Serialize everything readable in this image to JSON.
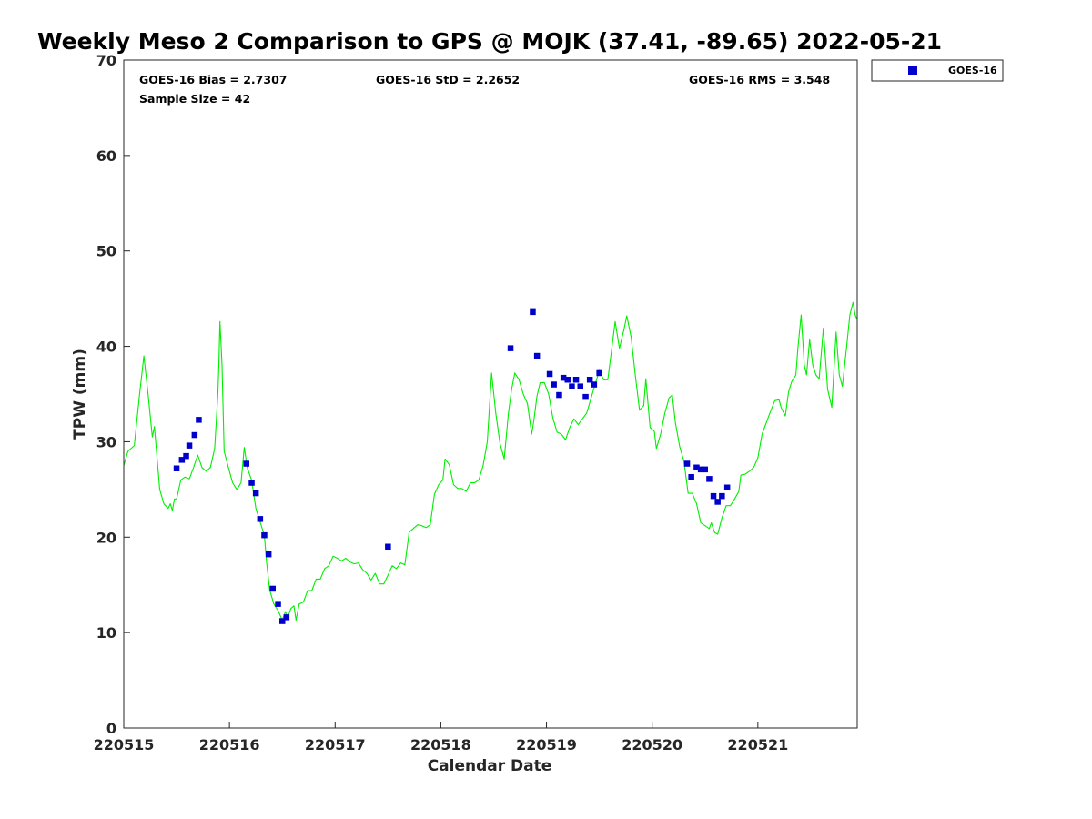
{
  "chart_data": {
    "type": "scatter",
    "title": "Weekly Meso 2 Comparison to GPS @ MOJK (37.41, -89.65) 2022-05-21",
    "xlabel": "Calendar Date",
    "ylabel": "TPW (mm)",
    "xlim": [
      0,
      6.94
    ],
    "ylim": [
      0,
      70
    ],
    "x_axis": "days since 220515 00Z",
    "x_ticks": [
      {
        "value": 0,
        "label": "220515"
      },
      {
        "value": 1,
        "label": "220516"
      },
      {
        "value": 2,
        "label": "220517"
      },
      {
        "value": 3,
        "label": "220518"
      },
      {
        "value": 4,
        "label": "220519"
      },
      {
        "value": 5,
        "label": "220520"
      },
      {
        "value": 6,
        "label": "220521"
      }
    ],
    "y_ticks": [
      0,
      10,
      20,
      30,
      40,
      50,
      60,
      70
    ],
    "grid": false,
    "legend_position": "top-right outside",
    "stats": {
      "bias": "GOES-16 Bias = 2.7307",
      "std": "GOES-16 StD = 2.2652",
      "rms": "GOES-16 RMS = 3.548",
      "sample": "Sample Size = 42"
    },
    "series": [
      {
        "name": "GOES-16",
        "kind": "scatter",
        "color": "#0000cc",
        "points": [
          [
            0.5,
            27.2
          ],
          [
            0.55,
            28.1
          ],
          [
            0.59,
            28.5
          ],
          [
            0.62,
            29.6
          ],
          [
            0.67,
            30.7
          ],
          [
            0.71,
            32.3
          ],
          [
            1.16,
            27.7
          ],
          [
            1.21,
            25.7
          ],
          [
            1.25,
            24.6
          ],
          [
            1.29,
            21.9
          ],
          [
            1.33,
            20.2
          ],
          [
            1.37,
            18.2
          ],
          [
            1.41,
            14.6
          ],
          [
            1.46,
            13.0
          ],
          [
            1.5,
            11.2
          ],
          [
            1.54,
            11.6
          ],
          [
            2.5,
            19.0
          ],
          [
            3.66,
            39.8
          ],
          [
            3.87,
            43.6
          ],
          [
            3.91,
            39.0
          ],
          [
            4.03,
            37.1
          ],
          [
            4.07,
            36.0
          ],
          [
            4.12,
            34.9
          ],
          [
            4.16,
            36.7
          ],
          [
            4.2,
            36.5
          ],
          [
            4.24,
            35.8
          ],
          [
            4.28,
            36.5
          ],
          [
            4.32,
            35.8
          ],
          [
            4.37,
            34.7
          ],
          [
            4.41,
            36.5
          ],
          [
            4.45,
            36.0
          ],
          [
            4.5,
            37.2
          ],
          [
            5.33,
            27.7
          ],
          [
            5.37,
            26.3
          ],
          [
            5.42,
            27.3
          ],
          [
            5.46,
            27.1
          ],
          [
            5.5,
            27.1
          ],
          [
            5.54,
            26.1
          ],
          [
            5.58,
            24.3
          ],
          [
            5.62,
            23.7
          ],
          [
            5.66,
            24.3
          ],
          [
            5.71,
            25.2
          ]
        ]
      },
      {
        "name": "GPS",
        "kind": "line",
        "color": "#00ee00",
        "points": [
          [
            0,
            27.5
          ],
          [
            0.04,
            29
          ],
          [
            0.1,
            29.6
          ],
          [
            0.15,
            35
          ],
          [
            0.19,
            39
          ],
          [
            0.23,
            35
          ],
          [
            0.27,
            30.5
          ],
          [
            0.29,
            31.6
          ],
          [
            0.34,
            25
          ],
          [
            0.38,
            23.5
          ],
          [
            0.42,
            23
          ],
          [
            0.44,
            23.5
          ],
          [
            0.46,
            22.8
          ],
          [
            0.48,
            24
          ],
          [
            0.5,
            24
          ],
          [
            0.54,
            26
          ],
          [
            0.58,
            26.3
          ],
          [
            0.62,
            26.1
          ],
          [
            0.66,
            27.3
          ],
          [
            0.7,
            28.6
          ],
          [
            0.74,
            27.3
          ],
          [
            0.78,
            26.9
          ],
          [
            0.82,
            27.3
          ],
          [
            0.86,
            29.3
          ],
          [
            0.89,
            35
          ],
          [
            0.9,
            38
          ],
          [
            0.91,
            42.6
          ],
          [
            0.93,
            38
          ],
          [
            0.95,
            29
          ],
          [
            0.99,
            27.3
          ],
          [
            1.03,
            25.7
          ],
          [
            1.07,
            25
          ],
          [
            1.11,
            25.7
          ],
          [
            1.14,
            29.4
          ],
          [
            1.17,
            27.2
          ],
          [
            1.21,
            26
          ],
          [
            1.25,
            23
          ],
          [
            1.29,
            21.6
          ],
          [
            1.33,
            20.2
          ],
          [
            1.35,
            17.5
          ],
          [
            1.38,
            14.5
          ],
          [
            1.42,
            13
          ],
          [
            1.46,
            12.3
          ],
          [
            1.5,
            11.3
          ],
          [
            1.53,
            12.2
          ],
          [
            1.55,
            11.5
          ],
          [
            1.58,
            12.5
          ],
          [
            1.61,
            12.8
          ],
          [
            1.63,
            11.3
          ],
          [
            1.66,
            13
          ],
          [
            1.7,
            13.2
          ],
          [
            1.74,
            14.4
          ],
          [
            1.78,
            14.4
          ],
          [
            1.82,
            15.6
          ],
          [
            1.86,
            15.6
          ],
          [
            1.9,
            16.7
          ],
          [
            1.94,
            17
          ],
          [
            1.98,
            18
          ],
          [
            2.02,
            17.8
          ],
          [
            2.06,
            17.5
          ],
          [
            2.1,
            17.8
          ],
          [
            2.14,
            17.4
          ],
          [
            2.18,
            17.2
          ],
          [
            2.22,
            17.3
          ],
          [
            2.26,
            16.6
          ],
          [
            2.3,
            16.2
          ],
          [
            2.34,
            15.5
          ],
          [
            2.38,
            16.2
          ],
          [
            2.42,
            15.1
          ],
          [
            2.46,
            15.1
          ],
          [
            2.5,
            16
          ],
          [
            2.54,
            17
          ],
          [
            2.58,
            16.7
          ],
          [
            2.62,
            17.3
          ],
          [
            2.66,
            17.1
          ],
          [
            2.7,
            20.5
          ],
          [
            2.74,
            20.9
          ],
          [
            2.78,
            21.3
          ],
          [
            2.82,
            21.2
          ],
          [
            2.86,
            21
          ],
          [
            2.9,
            21.3
          ],
          [
            2.94,
            24.5
          ],
          [
            2.98,
            25.5
          ],
          [
            3.02,
            26
          ],
          [
            3.04,
            28.2
          ],
          [
            3.08,
            27.6
          ],
          [
            3.12,
            25.5
          ],
          [
            3.16,
            25.1
          ],
          [
            3.2,
            25.1
          ],
          [
            3.24,
            24.8
          ],
          [
            3.28,
            25.7
          ],
          [
            3.32,
            25.7
          ],
          [
            3.36,
            26
          ],
          [
            3.4,
            27.5
          ],
          [
            3.44,
            30
          ],
          [
            3.48,
            37.2
          ],
          [
            3.52,
            33
          ],
          [
            3.56,
            29.8
          ],
          [
            3.6,
            28.2
          ],
          [
            3.64,
            33
          ],
          [
            3.67,
            35.5
          ],
          [
            3.7,
            37.2
          ],
          [
            3.74,
            36.5
          ],
          [
            3.78,
            35
          ],
          [
            3.82,
            34
          ],
          [
            3.86,
            30.8
          ],
          [
            3.88,
            32.2
          ],
          [
            3.91,
            34.8
          ],
          [
            3.94,
            36.2
          ],
          [
            3.98,
            36.2
          ],
          [
            4.02,
            35
          ],
          [
            4.06,
            32.5
          ],
          [
            4.1,
            31
          ],
          [
            4.14,
            30.8
          ],
          [
            4.18,
            30.2
          ],
          [
            4.22,
            31.5
          ],
          [
            4.26,
            32.4
          ],
          [
            4.3,
            31.8
          ],
          [
            4.34,
            32.4
          ],
          [
            4.38,
            33
          ],
          [
            4.42,
            34.5
          ],
          [
            4.46,
            36
          ],
          [
            4.5,
            37.5
          ],
          [
            4.54,
            36.5
          ],
          [
            4.58,
            36.5
          ],
          [
            4.62,
            40
          ],
          [
            4.65,
            42.6
          ],
          [
            4.69,
            39.8
          ],
          [
            4.73,
            41.6
          ],
          [
            4.76,
            43.2
          ],
          [
            4.8,
            41
          ],
          [
            4.84,
            37
          ],
          [
            4.88,
            33.3
          ],
          [
            4.92,
            33.8
          ],
          [
            4.94,
            36.6
          ],
          [
            4.98,
            31.5
          ],
          [
            5.02,
            31.1
          ],
          [
            5.04,
            29.3
          ],
          [
            5.08,
            30.8
          ],
          [
            5.12,
            33
          ],
          [
            5.16,
            34.6
          ],
          [
            5.19,
            34.9
          ],
          [
            5.22,
            32
          ],
          [
            5.26,
            29.5
          ],
          [
            5.3,
            28
          ],
          [
            5.34,
            24.6
          ],
          [
            5.38,
            24.6
          ],
          [
            5.42,
            23.5
          ],
          [
            5.46,
            21.5
          ],
          [
            5.5,
            21.2
          ],
          [
            5.54,
            20.9
          ],
          [
            5.56,
            21.5
          ],
          [
            5.59,
            20.5
          ],
          [
            5.62,
            20.3
          ],
          [
            5.66,
            22
          ],
          [
            5.7,
            23.3
          ],
          [
            5.74,
            23.3
          ],
          [
            5.78,
            24
          ],
          [
            5.82,
            24.8
          ],
          [
            5.84,
            26.5
          ],
          [
            5.88,
            26.6
          ],
          [
            5.92,
            26.9
          ],
          [
            5.96,
            27.3
          ],
          [
            6,
            28.3
          ],
          [
            6.04,
            30.8
          ],
          [
            6.08,
            32
          ],
          [
            6.12,
            33.2
          ],
          [
            6.16,
            34.3
          ],
          [
            6.2,
            34.4
          ],
          [
            6.22,
            33.6
          ],
          [
            6.26,
            32.7
          ],
          [
            6.29,
            35.2
          ],
          [
            6.32,
            36.3
          ],
          [
            6.36,
            37
          ],
          [
            6.38,
            40
          ],
          [
            6.41,
            43.3
          ],
          [
            6.44,
            38
          ],
          [
            6.46,
            37
          ],
          [
            6.49,
            40.7
          ],
          [
            6.52,
            38
          ],
          [
            6.55,
            37
          ],
          [
            6.58,
            36.6
          ],
          [
            6.62,
            41.9
          ],
          [
            6.66,
            35.5
          ],
          [
            6.7,
            33.6
          ],
          [
            6.74,
            41.5
          ],
          [
            6.77,
            37
          ],
          [
            6.8,
            35.8
          ],
          [
            6.84,
            40
          ],
          [
            6.87,
            43.3
          ],
          [
            6.9,
            44.6
          ],
          [
            6.92,
            43.3
          ],
          [
            6.94,
            42.8
          ]
        ]
      }
    ]
  }
}
